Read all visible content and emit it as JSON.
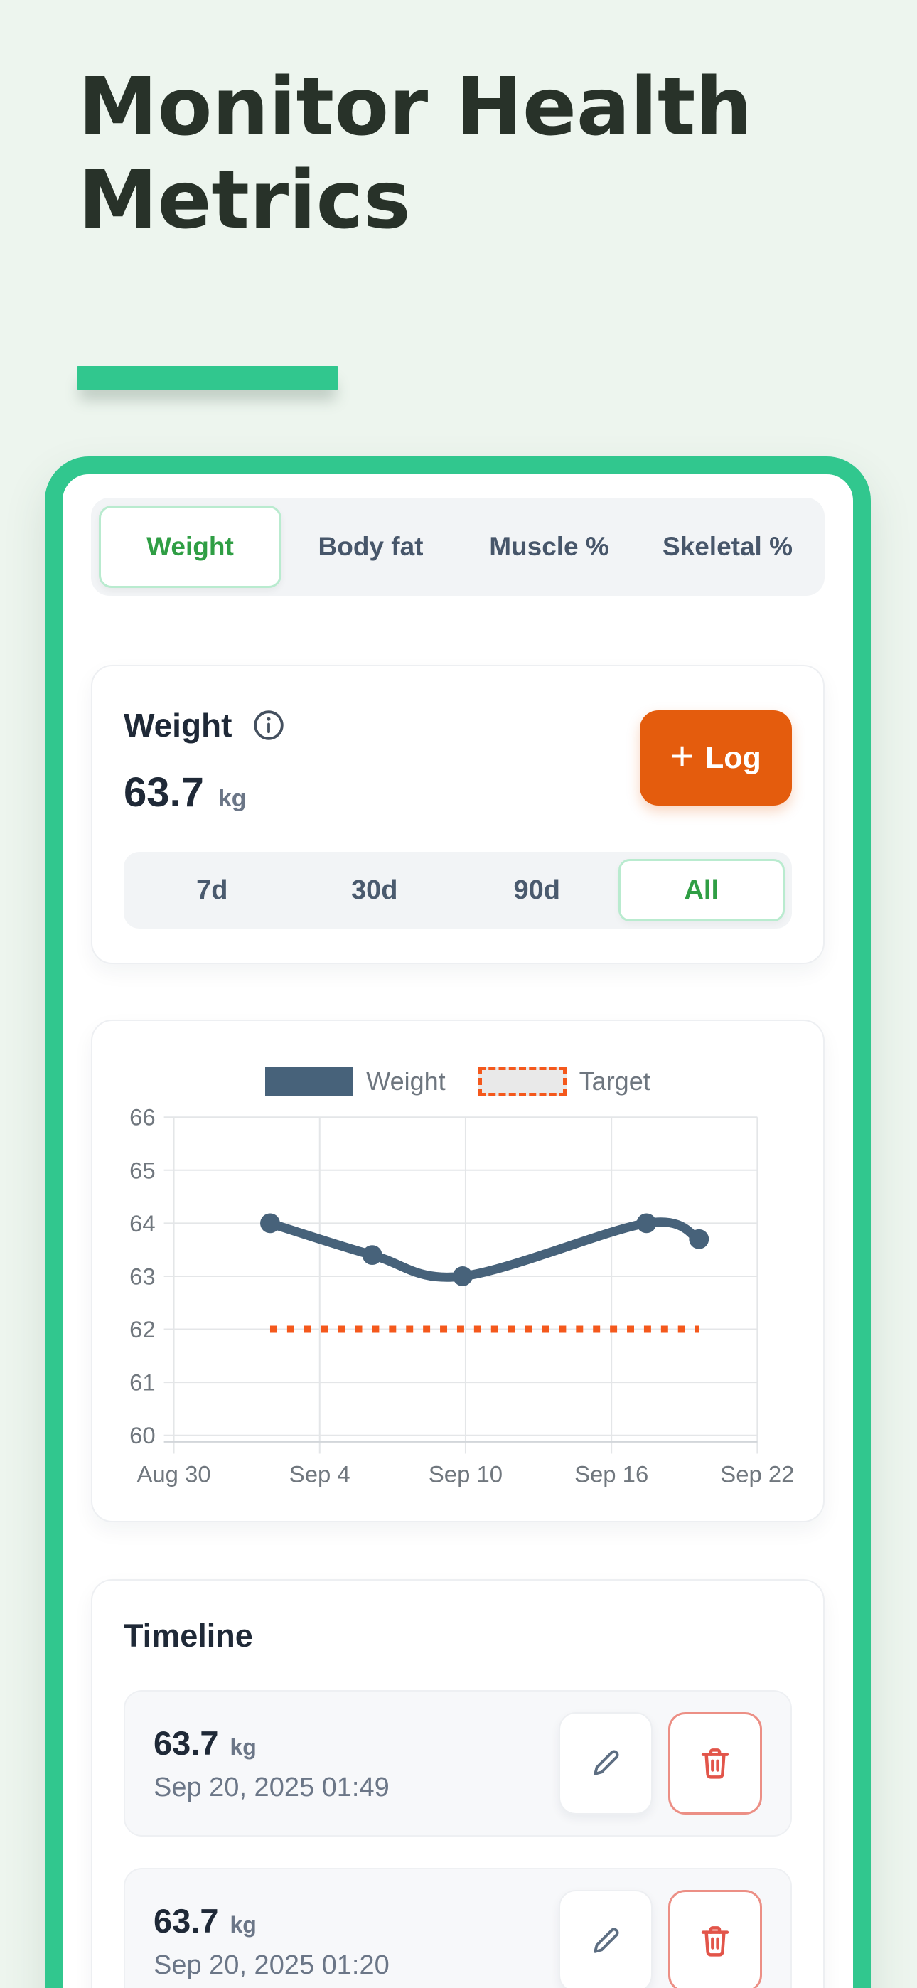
{
  "page": {
    "title": "Monitor Health Metrics"
  },
  "colors": {
    "background": "#edf5ee",
    "accent_green": "#31c78e",
    "active_green_text": "#2f9e44",
    "log_orange": "#e45c0d",
    "target_orange": "#f4581c",
    "weight_line_slate": "#47627a",
    "danger_red": "#e2554a",
    "dark_text": "#1f2937",
    "muted_text": "#6b7687"
  },
  "tabs": [
    {
      "label": "Weight",
      "active": true
    },
    {
      "label": "Body fat",
      "active": false
    },
    {
      "label": "Muscle %",
      "active": false
    },
    {
      "label": "Skeletal %",
      "active": false
    }
  ],
  "metric": {
    "title": "Weight",
    "value": "63.7",
    "unit": "kg",
    "plus": "+",
    "log_button": "Log"
  },
  "ranges": [
    {
      "label": "7d",
      "active": false
    },
    {
      "label": "30d",
      "active": false
    },
    {
      "label": "90d",
      "active": false
    },
    {
      "label": "All",
      "active": true
    }
  ],
  "chart_data": {
    "type": "line",
    "title": "",
    "xlabel": "",
    "ylabel": "",
    "ylim": [
      60,
      66
    ],
    "y_ticks": [
      60,
      61,
      62,
      63,
      64,
      65,
      66
    ],
    "x_ticks": [
      "Aug 30",
      "Sep 4",
      "Sep 10",
      "Sep 16",
      "Sep 22"
    ],
    "grid": true,
    "legend_position": "top",
    "series": [
      {
        "name": "Weight",
        "type": "line",
        "color": "#47627a",
        "points": [
          {
            "date": "Sep 3",
            "x_frac": 0.165,
            "value": 64.0
          },
          {
            "date": "Sep 6",
            "x_frac": 0.34,
            "value": 63.4
          },
          {
            "date": "Sep 10",
            "x_frac": 0.495,
            "value": 63.0
          },
          {
            "date": "Sep 17",
            "x_frac": 0.81,
            "value": 64.0
          },
          {
            "date": "Sep 20",
            "x_frac": 0.9,
            "value": 63.7
          }
        ]
      },
      {
        "name": "Target",
        "type": "dotted-line",
        "color": "#f4581c",
        "value": 62,
        "x_start_frac": 0.165,
        "x_end_frac": 0.9
      }
    ]
  },
  "timeline": {
    "heading": "Timeline",
    "entries": [
      {
        "value": "63.7",
        "unit": "kg",
        "timestamp": "Sep 20, 2025 01:49"
      },
      {
        "value": "63.7",
        "unit": "kg",
        "timestamp": "Sep 20, 2025 01:20"
      }
    ]
  }
}
